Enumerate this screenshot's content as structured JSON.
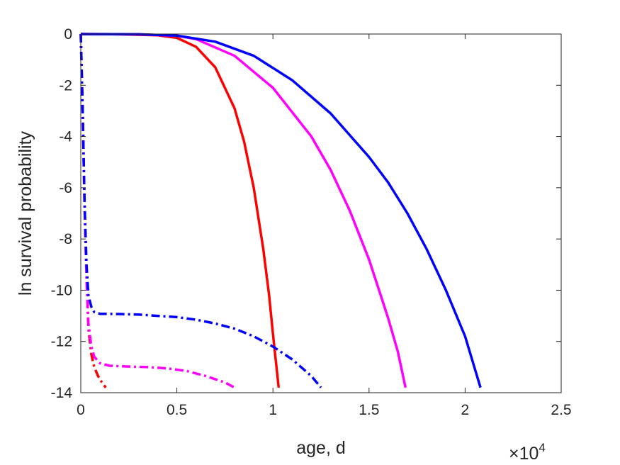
{
  "chart_data": {
    "type": "line",
    "title": "",
    "xlabel": "age, d",
    "ylabel": "ln survival probability",
    "x_exponent_label": {
      "base": "×10",
      "power": "4"
    },
    "xlim": [
      0,
      25000
    ],
    "ylim": [
      -14,
      0
    ],
    "xticks": [
      0,
      5000,
      10000,
      15000,
      20000,
      25000
    ],
    "xtick_labels": [
      "0",
      "0.5",
      "1",
      "1.5",
      "2",
      "2.5"
    ],
    "yticks": [
      0,
      -2,
      -4,
      -6,
      -8,
      -10,
      -12,
      -14
    ],
    "ytick_labels": [
      "0",
      "-2",
      "-4",
      "-6",
      "-8",
      "-10",
      "-12",
      "-14"
    ],
    "grid": false,
    "legend": "none",
    "series": [
      {
        "color": "#ff0000",
        "style": "solid",
        "x": [
          0,
          2000,
          4000,
          5000,
          6000,
          7000,
          8000,
          8500,
          9000,
          9500,
          9800,
          10000,
          10300
        ],
        "y": [
          0,
          -0.01,
          -0.05,
          -0.15,
          -0.5,
          -1.3,
          -2.9,
          -4.2,
          -6.0,
          -8.4,
          -10.2,
          -11.7,
          -13.8
        ]
      },
      {
        "color": "#ff00ff",
        "style": "solid",
        "x": [
          0,
          3000,
          5000,
          6000,
          8000,
          10000,
          12000,
          13000,
          14000,
          15000,
          16000,
          16500,
          16900
        ],
        "y": [
          0,
          -0.01,
          -0.07,
          -0.2,
          -0.85,
          -2.1,
          -4.0,
          -5.3,
          -6.9,
          -8.8,
          -11.1,
          -12.4,
          -13.8
        ]
      },
      {
        "color": "#0000ff",
        "style": "solid",
        "x": [
          0,
          3000,
          5000,
          7000,
          9000,
          11000,
          13000,
          15000,
          16000,
          17000,
          18000,
          19000,
          20000,
          20800
        ],
        "y": [
          0,
          -0.01,
          -0.06,
          -0.3,
          -0.85,
          -1.8,
          -3.1,
          -4.8,
          -5.8,
          -7.0,
          -8.4,
          -10.0,
          -11.8,
          -13.8
        ]
      },
      {
        "color": "#ff0000",
        "style": "dashdot",
        "x": [
          0,
          100,
          200,
          300,
          400,
          550,
          700,
          900,
          1100,
          1300
        ],
        "y": [
          0,
          -3.0,
          -6.8,
          -9.5,
          -11.5,
          -12.5,
          -13.0,
          -13.35,
          -13.6,
          -13.8
        ]
      },
      {
        "color": "#ff00ff",
        "style": "dashdot",
        "x": [
          0,
          100,
          200,
          300,
          400,
          550,
          700,
          1000,
          1500,
          2500,
          3500,
          4500,
          5500,
          6500,
          7500,
          8000
        ],
        "y": [
          0,
          -3.0,
          -6.8,
          -9.5,
          -11.3,
          -12.2,
          -12.6,
          -12.85,
          -12.95,
          -12.98,
          -13.0,
          -13.05,
          -13.15,
          -13.35,
          -13.6,
          -13.8
        ]
      },
      {
        "color": "#0000ff",
        "style": "dashdot",
        "x": [
          0,
          100,
          200,
          300,
          400,
          550,
          700,
          1000,
          2000,
          3000,
          4000,
          5000,
          6000,
          7000,
          8000,
          9000,
          10000,
          11000,
          12000,
          12500
        ],
        "y": [
          0,
          -3.0,
          -6.6,
          -9.0,
          -10.2,
          -10.65,
          -10.85,
          -10.92,
          -10.93,
          -10.95,
          -11.0,
          -11.05,
          -11.15,
          -11.3,
          -11.5,
          -11.8,
          -12.2,
          -12.7,
          -13.35,
          -13.8
        ]
      }
    ]
  }
}
